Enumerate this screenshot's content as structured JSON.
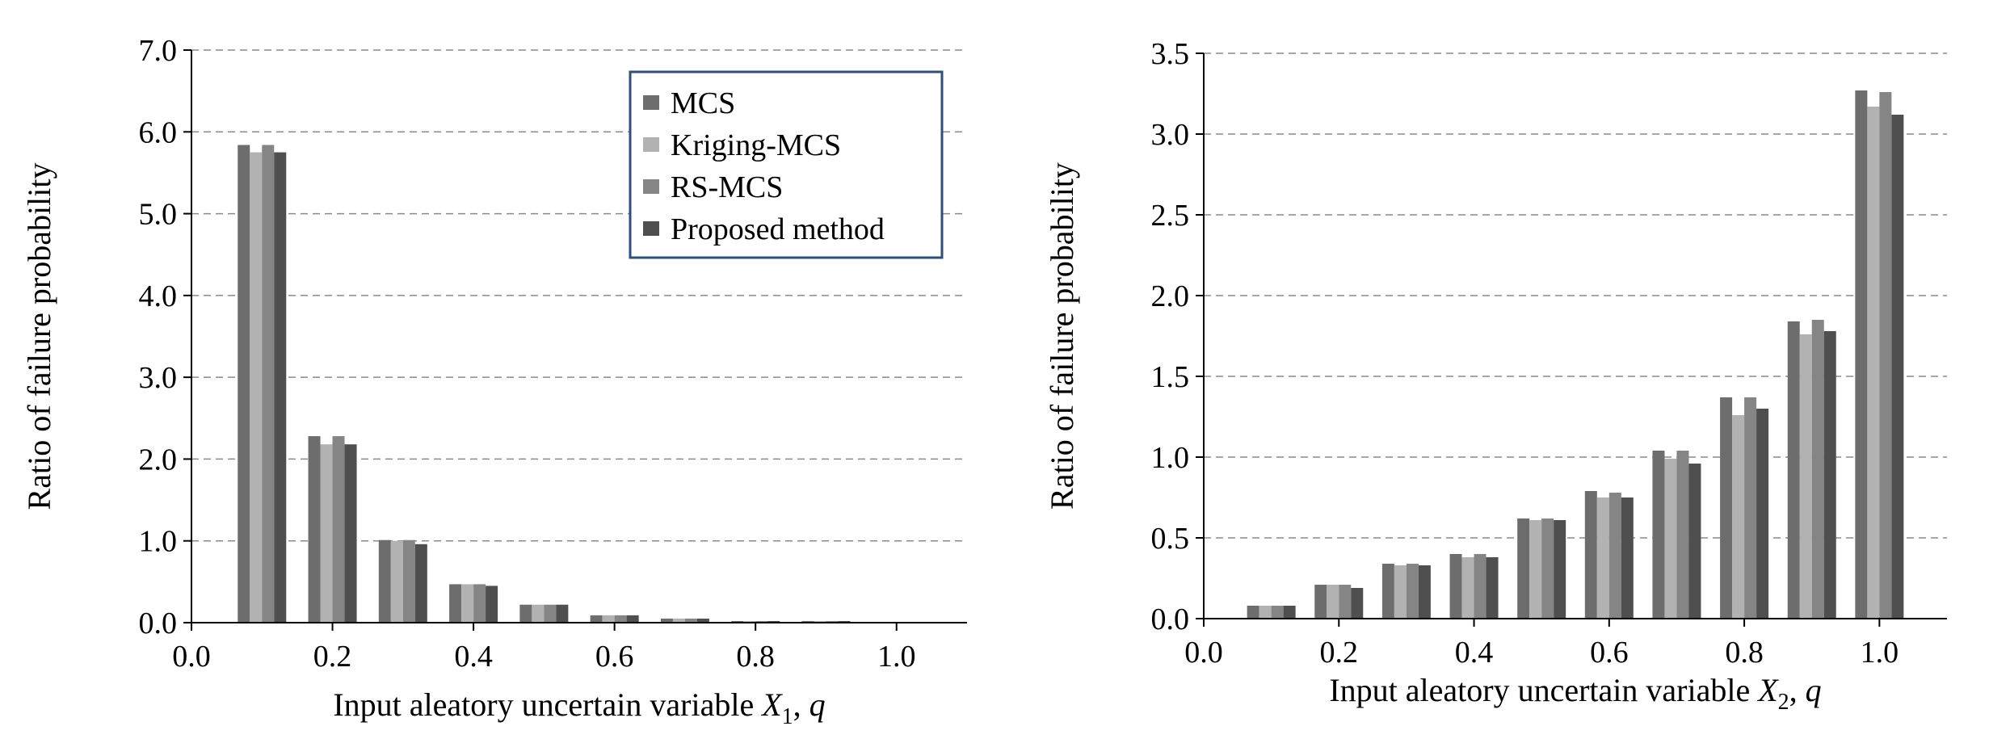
{
  "chart_data": [
    {
      "type": "bar",
      "xlabel_prefix": "Input aleatory uncertain variable ",
      "xlabel_var": "X",
      "xlabel_sub": "1",
      "xlabel_suffix": ", q",
      "ylabel": "Ratio of failure probability",
      "ylim": [
        0,
        7
      ],
      "xlim": [
        0,
        1.1
      ],
      "yticks": [
        "0.0",
        "1.0",
        "2.0",
        "3.0",
        "4.0",
        "5.0",
        "6.0",
        "7.0"
      ],
      "xticks": [
        "0.0",
        "0.2",
        "0.4",
        "0.6",
        "0.8",
        "1.0"
      ],
      "grid": "horizontal dashed",
      "legend_position": "top-right",
      "categories": [
        0.1,
        0.2,
        0.3,
        0.4,
        0.5,
        0.6,
        0.7,
        0.8,
        0.9,
        1.0
      ],
      "series": [
        {
          "name": "MCS",
          "values": [
            5.84,
            2.28,
            1.01,
            0.47,
            0.22,
            0.09,
            0.05,
            0.02,
            0.02,
            0.0
          ]
        },
        {
          "name": "Kriging-MCS",
          "values": [
            5.75,
            2.18,
            1.0,
            0.47,
            0.22,
            0.09,
            0.05,
            0.02,
            0.02,
            0.0
          ]
        },
        {
          "name": "RS-MCS",
          "values": [
            5.84,
            2.28,
            1.01,
            0.47,
            0.22,
            0.09,
            0.05,
            0.02,
            0.02,
            0.0
          ]
        },
        {
          "name": "Proposed method",
          "values": [
            5.75,
            2.18,
            0.96,
            0.45,
            0.22,
            0.09,
            0.05,
            0.02,
            0.02,
            0.0
          ]
        }
      ]
    },
    {
      "type": "bar",
      "xlabel_prefix": "Input aleatory uncertain variable ",
      "xlabel_var": "X",
      "xlabel_sub": "2",
      "xlabel_suffix": ", q",
      "ylabel": "Ratio of failure probability",
      "ylim": [
        0,
        3.5
      ],
      "xlim": [
        0,
        1.1
      ],
      "yticks": [
        "0.0",
        "0.5",
        "1.0",
        "1.5",
        "2.0",
        "2.5",
        "3.0",
        "3.5"
      ],
      "xticks": [
        "0.0",
        "0.2",
        "0.4",
        "0.6",
        "0.8",
        "1.0"
      ],
      "grid": "horizontal dashed",
      "categories": [
        0.1,
        0.2,
        0.3,
        0.4,
        0.5,
        0.6,
        0.7,
        0.8,
        0.9,
        1.0
      ],
      "series": [
        {
          "name": "MCS",
          "values": [
            0.08,
            0.21,
            0.34,
            0.4,
            0.62,
            0.79,
            1.04,
            1.37,
            1.84,
            3.27
          ]
        },
        {
          "name": "Kriging-MCS",
          "values": [
            0.08,
            0.21,
            0.33,
            0.38,
            0.61,
            0.75,
            0.99,
            1.26,
            1.76,
            3.17
          ]
        },
        {
          "name": "RS-MCS",
          "values": [
            0.08,
            0.21,
            0.34,
            0.4,
            0.62,
            0.78,
            1.04,
            1.37,
            1.85,
            3.26
          ]
        },
        {
          "name": "Proposed method",
          "values": [
            0.08,
            0.19,
            0.33,
            0.38,
            0.61,
            0.75,
            0.96,
            1.3,
            1.78,
            3.12
          ]
        }
      ]
    }
  ],
  "colors": {
    "series": [
      "#6d6d6d",
      "#b2b2b2",
      "#858585",
      "#4f4f4f"
    ],
    "legend_border": "#2e4f7a",
    "grid": "#8a8a8a",
    "axis": "#000000"
  }
}
